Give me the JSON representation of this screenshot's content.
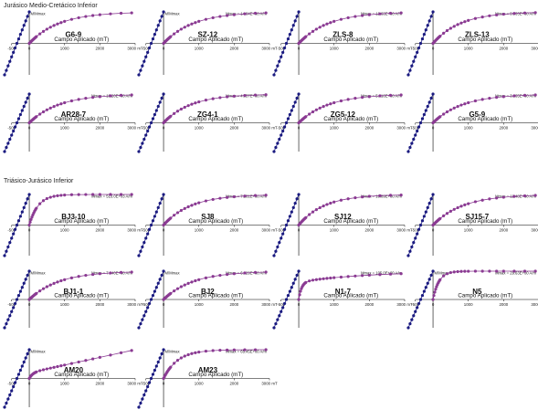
{
  "sections": [
    {
      "id": "jm",
      "title": "Jurásico Medio-Cretácico Inferior"
    },
    {
      "id": "tj",
      "title": "Triásico-Jurásico Inferior"
    }
  ],
  "colors": {
    "backfield": "#1a1a80",
    "forward": "#8a3a92",
    "axis": "#000000"
  },
  "chart_data": [
    {
      "type": "line",
      "title": "G6-9",
      "ylabel": "M/Mmax",
      "mmax": "",
      "xlabel": "Campo Aplicado (mT)",
      "xticks": [
        "-500",
        "0",
        "1000",
        "2000",
        "3000 mT"
      ],
      "xlim": [
        -700,
        3000
      ],
      "ylim": [
        -1,
        1
      ],
      "shape": "sat",
      "k": 0.0012,
      "series": [
        {
          "name": "backfield"
        },
        {
          "name": "forward"
        }
      ]
    },
    {
      "type": "line",
      "title": "SZ-12",
      "ylabel": "M/Mmax",
      "mmax": "Mmax = 14.04E+00 A/m",
      "xlabel": "Campo Aplicado (mT)",
      "xticks": [
        "-500",
        "0",
        "1000",
        "2000",
        "3000 mT"
      ],
      "xlim": [
        -700,
        3000
      ],
      "ylim": [
        -1,
        1
      ],
      "shape": "sat",
      "k": 0.0012,
      "series": [
        {
          "name": "backfield"
        },
        {
          "name": "forward"
        }
      ]
    },
    {
      "type": "line",
      "title": "ZLS-8",
      "ylabel": "",
      "mmax": "Mmax = 12.63E+00 A/m",
      "xlabel": "Campo Aplicado (mT)",
      "xticks": [
        "-500",
        "0",
        "1000",
        "2000",
        "3000 mT"
      ],
      "xlim": [
        -700,
        3000
      ],
      "ylim": [
        -1,
        1
      ],
      "shape": "sat",
      "k": 0.0012,
      "series": [
        {
          "name": "backfield"
        },
        {
          "name": "forward"
        }
      ]
    },
    {
      "type": "line",
      "title": "ZLS-13",
      "ylabel": "",
      "mmax": "Mmax = 9.963E+00 A/m",
      "xlabel": "Campo Aplicado (mT)",
      "xticks": [
        "-500",
        "0",
        "1000",
        "2000",
        "3000 mT"
      ],
      "xlim": [
        -700,
        3000
      ],
      "ylim": [
        -1,
        1
      ],
      "shape": "sat",
      "k": 0.0013,
      "series": [
        {
          "name": "backfield"
        },
        {
          "name": "forward"
        }
      ]
    },
    {
      "type": "line",
      "title": "AR28-7",
      "ylabel": "",
      "mmax": "Mmax = 10.20E+00 A/m",
      "xlabel": "Campo Aplicado (mT)",
      "xticks": [
        "-500",
        "0",
        "1000",
        "2000",
        "3000 mT"
      ],
      "xlim": [
        -700,
        3000
      ],
      "ylim": [
        -1,
        1
      ],
      "shape": "sat",
      "k": 0.0012,
      "series": [
        {
          "name": "backfield"
        },
        {
          "name": "forward"
        }
      ]
    },
    {
      "type": "line",
      "title": "ZG4-1",
      "ylabel": "",
      "mmax": "Mmax = 4.057E+00 A/m",
      "xlabel": "Campo Aplicado (mT)",
      "xticks": [
        "-500",
        "0",
        "1000",
        "2000",
        "3000 mT"
      ],
      "xlim": [
        -700,
        3000
      ],
      "ylim": [
        -1,
        1
      ],
      "shape": "sat",
      "k": 0.0013,
      "series": [
        {
          "name": "backfield"
        },
        {
          "name": "forward"
        }
      ]
    },
    {
      "type": "line",
      "title": "ZG5-12",
      "ylabel": "",
      "mmax": "Mmax = 5.016E+00 A/m",
      "xlabel": "Campo Aplicado (mT)",
      "xticks": [
        "-500",
        "0",
        "1000",
        "2000",
        "3000 mT"
      ],
      "xlim": [
        -700,
        3000
      ],
      "ylim": [
        -1,
        1
      ],
      "shape": "sat",
      "k": 0.0012,
      "series": [
        {
          "name": "backfield"
        },
        {
          "name": "forward"
        }
      ]
    },
    {
      "type": "line",
      "title": "G5-9",
      "ylabel": "",
      "mmax": "Mmax = 3.865E+00 A/m",
      "xlabel": "Campo Aplicado (mT)",
      "xticks": [
        "-500",
        "0",
        "1000",
        "2000",
        "3000 mT"
      ],
      "xlim": [
        -700,
        3000
      ],
      "ylim": [
        -1,
        1
      ],
      "shape": "sat",
      "k": 0.0012,
      "series": [
        {
          "name": "backfield"
        },
        {
          "name": "forward"
        }
      ]
    },
    {
      "type": "line",
      "title": "BJ3-10",
      "ylabel": "",
      "mmax": "Mmax = 513.0E+03 A/m",
      "xlabel": "Campo Aplicado (mT)",
      "xticks": [
        "-500",
        "0",
        "1000",
        "2000",
        "3000 mT"
      ],
      "xlim": [
        -700,
        3000
      ],
      "ylim": [
        -1,
        1
      ],
      "shape": "fast",
      "k": 0.004,
      "series": [
        {
          "name": "backfield"
        },
        {
          "name": "forward"
        }
      ]
    },
    {
      "type": "line",
      "title": "SJ8",
      "ylabel": "",
      "mmax": "Mmax = 7.261E+00 A/m",
      "xlabel": "Campo Aplicado (mT)",
      "xticks": [
        "-500",
        "0",
        "1000",
        "2000",
        "3000 mT"
      ],
      "xlim": [
        -700,
        3000
      ],
      "ylim": [
        -1,
        1
      ],
      "shape": "sat",
      "k": 0.0013,
      "series": [
        {
          "name": "backfield"
        },
        {
          "name": "forward"
        }
      ]
    },
    {
      "type": "line",
      "title": "SJ12",
      "ylabel": "",
      "mmax": "Mmax = 10.89E+00 A/m",
      "xlabel": "Campo Aplicado (mT)",
      "xticks": [
        "-500",
        "0",
        "1000",
        "2000",
        "3000 mT"
      ],
      "xlim": [
        -700,
        3000
      ],
      "ylim": [
        -1,
        1
      ],
      "shape": "sat",
      "k": 0.0014,
      "series": [
        {
          "name": "backfield"
        },
        {
          "name": "forward"
        }
      ]
    },
    {
      "type": "line",
      "title": "SJ15-7",
      "ylabel": "",
      "mmax": "Mmax = 12.48E+00 A/m",
      "xlabel": "Campo Aplicado (mT)",
      "xticks": [
        "-500",
        "0",
        "1000",
        "2000",
        "3000 mT"
      ],
      "xlim": [
        -700,
        3000
      ],
      "ylim": [
        -1,
        1
      ],
      "shape": "sat",
      "k": 0.0012,
      "series": [
        {
          "name": "backfield"
        },
        {
          "name": "forward"
        }
      ]
    },
    {
      "type": "line",
      "title": "BJ1-1",
      "ylabel": "M/Mmax",
      "mmax": "Mmax = 7.140E+00 A/m",
      "xlabel": "Campo Aplicado (mT)",
      "xticks": [
        "-500",
        "0",
        "1000",
        "2000",
        "3000 mT"
      ],
      "xlim": [
        -700,
        3000
      ],
      "ylim": [
        -1,
        1
      ],
      "shape": "sat",
      "k": 0.0012,
      "series": [
        {
          "name": "backfield"
        },
        {
          "name": "forward"
        }
      ]
    },
    {
      "type": "line",
      "title": "BJ2",
      "ylabel": "M/Mmax",
      "mmax": "Mmax = 6.329E+00 A/m",
      "xlabel": "Campo Aplicado (mT)",
      "xticks": [
        "-500",
        "0",
        "1000",
        "2000",
        "3000 mT"
      ],
      "xlim": [
        -700,
        3000
      ],
      "ylim": [
        -1,
        1
      ],
      "shape": "sat",
      "k": 0.0012,
      "series": [
        {
          "name": "backfield"
        },
        {
          "name": "forward"
        }
      ]
    },
    {
      "type": "line",
      "title": "N1-7",
      "ylabel": "",
      "mmax": "Mmax = 105.0E+00 A/m",
      "xlabel": "Campo Aplicado (mT)",
      "xticks": [
        "-500",
        "0",
        "1000",
        "2000",
        "3000 mT"
      ],
      "xlim": [
        -700,
        3000
      ],
      "ylim": [
        -1,
        1
      ],
      "shape": "hem",
      "k": 0.0005,
      "series": [
        {
          "name": "backfield"
        },
        {
          "name": "forward"
        }
      ]
    },
    {
      "type": "line",
      "title": "N5",
      "ylabel": "M/Mmax",
      "mmax": "Mmax = 29.63E+00 A/m",
      "xlabel": "Campo Aplicado (mT)",
      "xticks": [
        "-500",
        "0",
        "1000",
        "2000",
        "3000 mT"
      ],
      "xlim": [
        -700,
        3000
      ],
      "ylim": [
        -1,
        1
      ],
      "shape": "fast",
      "k": 0.006,
      "series": [
        {
          "name": "backfield"
        },
        {
          "name": "forward"
        }
      ]
    },
    {
      "type": "line",
      "title": "AM20",
      "ylabel": "M/Mmax",
      "mmax": "",
      "xlabel": "Campo Aplicado (mT)",
      "xticks": [
        "-500",
        "0",
        "1000",
        "2000",
        "3000 mT"
      ],
      "xlim": [
        -700,
        3000
      ],
      "ylim": [
        -1,
        1
      ],
      "shape": "lin",
      "k": 0.0004,
      "series": [
        {
          "name": "backfield"
        },
        {
          "name": "forward"
        }
      ]
    },
    {
      "type": "line",
      "title": "AM23",
      "ylabel": "M/Mmax",
      "mmax": "Mmax = 65.45E+00 A/m",
      "xlabel": "Campo Aplicado (mT)",
      "xticks": [
        "-500",
        "0",
        "1000",
        "2000",
        "3000 mT"
      ],
      "xlim": [
        -700,
        3000
      ],
      "ylim": [
        -1,
        1
      ],
      "shape": "fast",
      "k": 0.0025,
      "series": [
        {
          "name": "backfield"
        },
        {
          "name": "forward"
        }
      ]
    }
  ]
}
